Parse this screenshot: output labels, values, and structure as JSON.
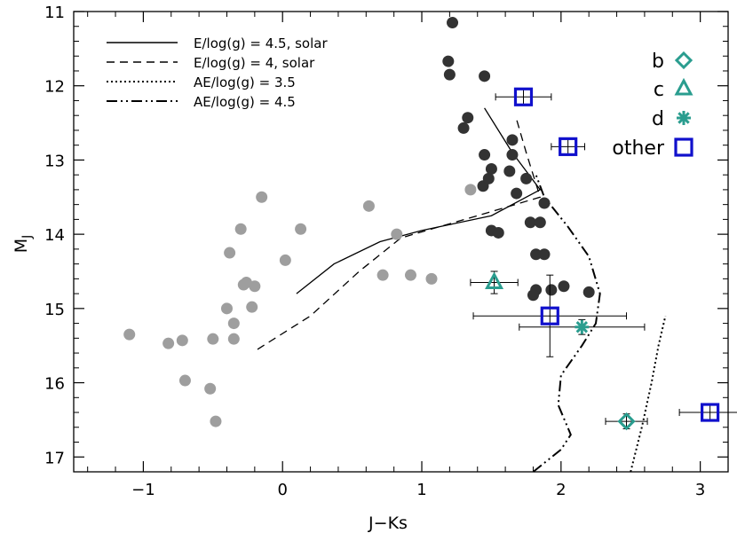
{
  "chart_data": {
    "type": "scatter",
    "title": "",
    "xlabel": "J−Ks",
    "ylabel": "M",
    "ylabel_subscript": "J",
    "xlim": [
      -1.5,
      3.2
    ],
    "ylim": [
      17.2,
      11.0
    ],
    "y_inverted": true,
    "grid": false,
    "x_ticks": [
      -1,
      0,
      1,
      2,
      3
    ],
    "x_tick_labels": [
      "−1",
      "0",
      "1",
      "2",
      "3"
    ],
    "y_ticks": [
      11,
      12,
      13,
      14,
      15,
      16,
      17
    ],
    "y_tick_labels": [
      "11",
      "12",
      "13",
      "14",
      "15",
      "16",
      "17"
    ],
    "legend_lines": [
      {
        "label": "E/log(g) = 4.5, solar",
        "style": "solid"
      },
      {
        "label": "E/log(g) = 4, solar",
        "style": "dashed"
      },
      {
        "label": "AE/log(g) = 3.5",
        "style": "dotted"
      },
      {
        "label": "AE/log(g) = 4.5",
        "style": "dash-dot-dot"
      }
    ],
    "legend_points": [
      {
        "label": "b",
        "marker": "diamond",
        "color": "#2a9d8f"
      },
      {
        "label": "c",
        "marker": "triangle",
        "color": "#2a9d8f"
      },
      {
        "label": "d",
        "marker": "asterisk",
        "color": "#2a9d8f"
      },
      {
        "label": "other",
        "marker": "square",
        "color": "#1010cc"
      }
    ],
    "lines": [
      {
        "name": "E/log(g) = 4.5, solar",
        "style": "solid",
        "x": [
          0.1,
          0.37,
          0.7,
          1.0,
          1.5,
          1.85,
          1.65,
          1.45
        ],
        "y": [
          14.8,
          14.4,
          14.1,
          13.95,
          13.75,
          13.4,
          12.9,
          12.3
        ]
      },
      {
        "name": "E/log(g) = 4, solar",
        "style": "dashed",
        "x": [
          -0.18,
          0.2,
          0.55,
          0.85,
          1.4,
          1.85,
          1.75,
          1.68
        ],
        "y": [
          15.55,
          15.1,
          14.5,
          14.05,
          13.75,
          13.5,
          12.9,
          12.45
        ]
      },
      {
        "name": "AE/log(g) = 3.5",
        "style": "dotted",
        "x": [
          2.5,
          2.58,
          2.65,
          2.7,
          2.75
        ],
        "y": [
          17.2,
          16.6,
          16.0,
          15.5,
          15.1
        ]
      },
      {
        "name": "AE/log(g) = 4.5",
        "style": "dash-dot-dot",
        "x": [
          1.8,
          2.0,
          2.07,
          1.98,
          2.0,
          2.15,
          2.25,
          2.28,
          2.2,
          2.05,
          1.88,
          1.82
        ],
        "y": [
          17.2,
          16.9,
          16.7,
          16.3,
          15.9,
          15.5,
          15.2,
          14.8,
          14.3,
          13.9,
          13.5,
          13.2
        ]
      }
    ],
    "series": [
      {
        "name": "grey points",
        "marker": "circle",
        "color": "#9e9e9e",
        "x": [
          -1.1,
          -0.82,
          -0.72,
          -0.7,
          -0.52,
          -0.48,
          -0.5,
          -0.4,
          -0.35,
          -0.35,
          -0.28,
          -0.26,
          -0.22,
          -0.2,
          -0.3,
          -0.38,
          -0.15,
          0.02,
          0.13,
          0.62,
          0.82,
          0.72,
          0.92,
          1.07,
          1.35
        ],
        "y": [
          15.35,
          15.47,
          15.43,
          15.97,
          16.08,
          16.52,
          15.41,
          15.0,
          15.2,
          15.41,
          14.68,
          14.65,
          14.98,
          14.7,
          13.93,
          14.25,
          13.5,
          14.35,
          13.93,
          13.62,
          14.0,
          14.55,
          14.55,
          14.6,
          13.4
        ]
      },
      {
        "name": "dark points",
        "marker": "circle",
        "color": "#333333",
        "x": [
          1.22,
          1.19,
          1.2,
          1.45,
          1.33,
          1.3,
          1.45,
          1.65,
          1.65,
          1.44,
          1.48,
          1.5,
          1.63,
          1.75,
          1.68,
          1.88,
          1.78,
          1.85,
          1.5,
          1.55,
          1.82,
          1.88,
          1.82,
          1.93,
          2.02,
          2.2,
          1.8
        ],
        "y": [
          11.15,
          11.67,
          11.85,
          11.87,
          12.43,
          12.57,
          12.93,
          12.73,
          12.93,
          13.35,
          13.25,
          13.12,
          13.15,
          13.25,
          13.45,
          13.58,
          13.84,
          13.84,
          13.95,
          13.98,
          14.27,
          14.27,
          14.75,
          14.75,
          14.7,
          14.78,
          14.82
        ]
      },
      {
        "name": "b",
        "marker": "diamond",
        "color": "#2a9d8f",
        "x": [
          2.47
        ],
        "y": [
          16.52
        ],
        "x_err": [
          0.15
        ],
        "y_err": [
          0.1
        ]
      },
      {
        "name": "c",
        "marker": "triangle",
        "color": "#2a9d8f",
        "x": [
          1.52
        ],
        "y": [
          14.65
        ],
        "x_err": [
          0.17
        ],
        "y_err": [
          0.15
        ]
      },
      {
        "name": "d",
        "marker": "asterisk",
        "color": "#2a9d8f",
        "x": [
          2.15
        ],
        "y": [
          15.25
        ],
        "x_err": [
          0.45
        ],
        "y_err": [
          0.1
        ]
      },
      {
        "name": "other",
        "marker": "square",
        "color": "#1010cc",
        "x": [
          1.73,
          2.05,
          1.92,
          3.07
        ],
        "y": [
          12.15,
          12.82,
          15.1,
          16.4
        ],
        "x_err": [
          0.2,
          0.12,
          0.55,
          0.22
        ],
        "y_err": [
          0.1,
          0.1,
          0.55,
          0.1
        ]
      }
    ]
  }
}
